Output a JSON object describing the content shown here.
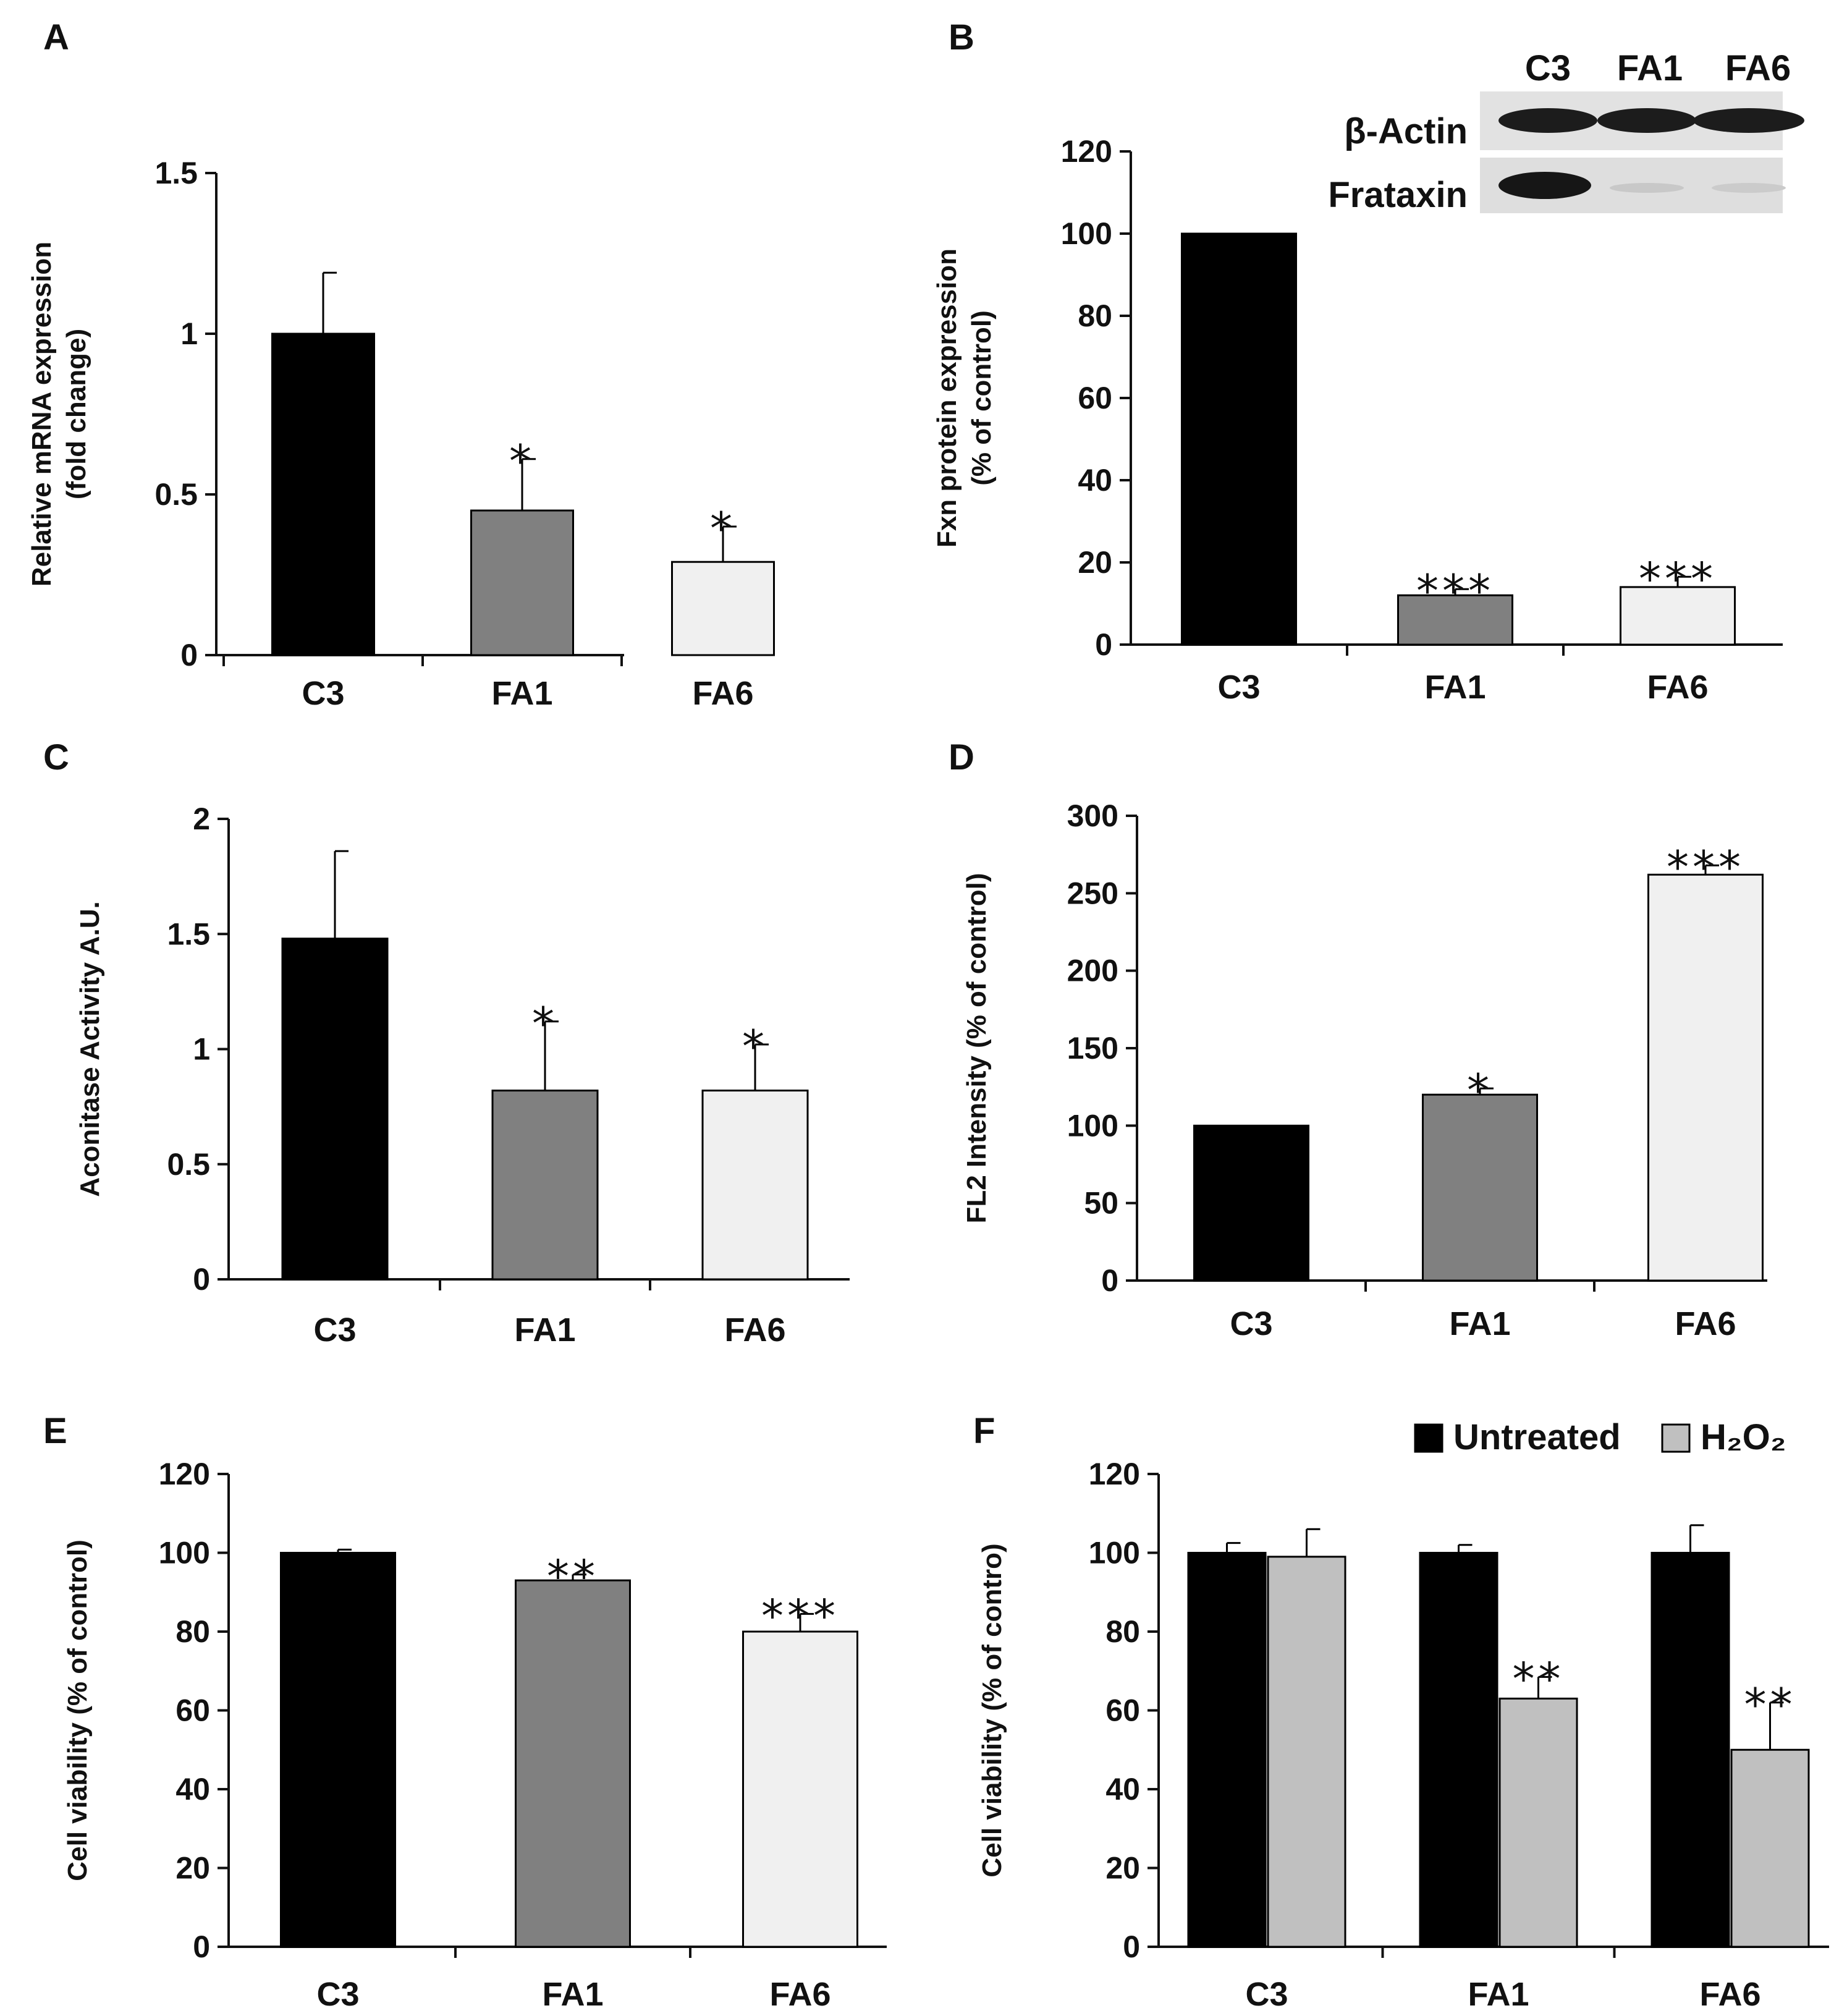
{
  "colors": {
    "black": "#000000",
    "dark_gray": "#808080",
    "light_gray": "#f0f0f0",
    "mid_gray": "#c0c0c0",
    "axis": "#111111"
  },
  "chart_data": [
    {
      "panel": "A",
      "type": "bar",
      "categories": [
        "C3",
        "FA1",
        "FA6"
      ],
      "values": [
        1.0,
        0.45,
        0.29
      ],
      "errors": [
        0.19,
        0.16,
        0.11
      ],
      "significance": [
        "",
        "*",
        "*"
      ],
      "bar_colors": [
        "#000000",
        "#808080",
        "#f0f0f0"
      ],
      "ylabel": [
        "Relative mRNA expression",
        "(fold change)"
      ],
      "ylim": [
        0,
        1.5
      ],
      "yticks": [
        0,
        0.5,
        1,
        1.5
      ],
      "ytick_labels": [
        "0",
        "0.5",
        "1",
        "1.5"
      ]
    },
    {
      "panel": "B",
      "type": "bar",
      "categories": [
        "C3",
        "FA1",
        "FA6"
      ],
      "values": [
        100,
        12,
        14
      ],
      "errors": [
        0,
        1.5,
        2.5
      ],
      "significance": [
        "",
        "***",
        "***"
      ],
      "bar_colors": [
        "#000000",
        "#808080",
        "#f0f0f0"
      ],
      "ylabel": [
        "Fxn protein expression",
        "(% of control)"
      ],
      "ylim": [
        0,
        120
      ],
      "yticks": [
        0,
        20,
        40,
        60,
        80,
        100,
        120
      ],
      "ytick_labels": [
        "0",
        "20",
        "40",
        "60",
        "80",
        "100",
        "120"
      ],
      "inset_blot": {
        "lanes": [
          "C3",
          "FA1",
          "FA6"
        ],
        "rows": [
          "β-Actin",
          "Frataxin"
        ]
      }
    },
    {
      "panel": "C",
      "type": "bar",
      "categories": [
        "C3",
        "FA1",
        "FA6"
      ],
      "values": [
        1.48,
        0.82,
        0.82
      ],
      "errors": [
        0.38,
        0.3,
        0.2
      ],
      "significance": [
        "",
        "*",
        "*"
      ],
      "bar_colors": [
        "#000000",
        "#808080",
        "#f0f0f0"
      ],
      "ylabel": [
        "Aconitase Activity A.U."
      ],
      "ylim": [
        0,
        2
      ],
      "yticks": [
        0,
        0.5,
        1,
        1.5,
        2
      ],
      "ytick_labels": [
        "0",
        "0.5",
        "1",
        "1.5",
        "2"
      ]
    },
    {
      "panel": "D",
      "type": "bar",
      "categories": [
        "C3",
        "FA1",
        "FA6"
      ],
      "values": [
        100,
        120,
        262
      ],
      "errors": [
        0,
        4,
        6
      ],
      "significance": [
        "",
        "*",
        "***"
      ],
      "bar_colors": [
        "#000000",
        "#808080",
        "#f0f0f0"
      ],
      "ylabel": [
        "FL2 Intensity (% of control)"
      ],
      "ylim": [
        0,
        300
      ],
      "yticks": [
        0,
        50,
        100,
        150,
        200,
        250,
        300
      ],
      "ytick_labels": [
        "0",
        "50",
        "100",
        "150",
        "200",
        "250",
        "300"
      ]
    },
    {
      "panel": "E",
      "type": "bar",
      "categories": [
        "C3",
        "FA1",
        "FA6"
      ],
      "values": [
        100,
        93,
        80
      ],
      "errors": [
        0.8,
        1.5,
        4.5
      ],
      "significance": [
        "",
        "**",
        "***"
      ],
      "bar_colors": [
        "#000000",
        "#808080",
        "#f0f0f0"
      ],
      "ylabel": [
        "Cell viability (% of control)"
      ],
      "ylim": [
        0,
        120
      ],
      "yticks": [
        0,
        20,
        40,
        60,
        80,
        100,
        120
      ],
      "ytick_labels": [
        "0",
        "20",
        "40",
        "60",
        "80",
        "100",
        "120"
      ]
    },
    {
      "panel": "F",
      "type": "bar",
      "categories": [
        "C3",
        "FA1",
        "FA6"
      ],
      "series": [
        {
          "name": "Untreated",
          "color": "#000000",
          "values": [
            100,
            100,
            100
          ],
          "errors": [
            2.5,
            2,
            7
          ],
          "significance": [
            "",
            "",
            ""
          ]
        },
        {
          "name": "H₂O₂",
          "color": "#c0c0c0",
          "values": [
            99,
            63,
            50
          ],
          "errors": [
            7,
            5.5,
            12
          ],
          "significance": [
            "",
            "**",
            "**"
          ]
        }
      ],
      "legend": "top-right",
      "ylabel": [
        "Cell viability (% of contro)"
      ],
      "ylim": [
        0,
        120
      ],
      "yticks": [
        0,
        20,
        40,
        60,
        80,
        100,
        120
      ],
      "ytick_labels": [
        "0",
        "20",
        "40",
        "60",
        "80",
        "100",
        "120"
      ]
    }
  ]
}
